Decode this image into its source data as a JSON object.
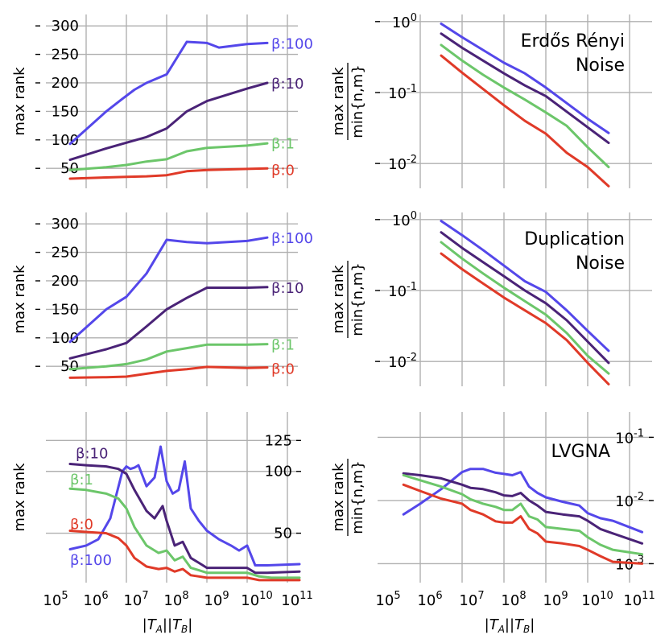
{
  "colors": {
    "beta0": "#e03a28",
    "beta1": "#6cc66a",
    "beta10": "#4a2377",
    "beta100": "#5447ea",
    "grid": "#b0b0b0"
  },
  "chart_data": [
    {
      "id": "p00",
      "type": "line",
      "xscale": "log",
      "yscale": "linear",
      "xlim": [
        5.5,
        11.5
      ],
      "ylim": [
        15,
        320
      ],
      "yticks": [
        50,
        100,
        150,
        200,
        250,
        300
      ],
      "yticklabels": [
        "50",
        "100",
        "150",
        "200",
        "250",
        "300"
      ],
      "ytick_side": "left",
      "ylabel": "max rank",
      "series": [
        {
          "name": "β:100",
          "color": "#5447ea",
          "x": [
            5.6,
            6.5,
            6.9,
            7.2,
            7.5,
            8.0,
            8.5,
            9.0,
            9.3,
            10.0,
            10.5
          ],
          "y": [
            93,
            150,
            172,
            188,
            200,
            215,
            272,
            270,
            262,
            268,
            270
          ]
        },
        {
          "name": "β:10",
          "color": "#4a2377",
          "x": [
            5.6,
            6.5,
            7.0,
            7.5,
            8.0,
            8.5,
            9.0,
            10.0,
            10.5
          ],
          "y": [
            65,
            85,
            95,
            105,
            120,
            150,
            168,
            190,
            200
          ]
        },
        {
          "name": "β:1",
          "color": "#6cc66a",
          "x": [
            5.6,
            6.5,
            7.0,
            7.5,
            8.0,
            8.5,
            9.0,
            10.0,
            10.5
          ],
          "y": [
            47,
            52,
            56,
            62,
            66,
            80,
            86,
            90,
            94
          ]
        },
        {
          "name": "β:0",
          "color": "#e03a28",
          "x": [
            5.6,
            6.5,
            7.0,
            7.5,
            8.0,
            8.5,
            9.0,
            10.0,
            10.5
          ],
          "y": [
            32,
            34,
            35,
            36,
            38,
            45,
            47,
            49,
            50
          ]
        }
      ],
      "annotations": [
        {
          "text": "β:100",
          "color": "#5447ea",
          "x": 10.6,
          "y": 270
        },
        {
          "text": "β:10",
          "color": "#4a2377",
          "x": 10.6,
          "y": 200
        },
        {
          "text": "β:1",
          "color": "#6cc66a",
          "x": 10.6,
          "y": 95
        },
        {
          "text": "β:0",
          "color": "#e03a28",
          "x": 10.6,
          "y": 48
        }
      ]
    },
    {
      "id": "p01",
      "type": "line",
      "xscale": "log",
      "yscale": "log",
      "xlim": [
        5.5,
        11.5
      ],
      "ylim": [
        -2.35,
        0.1
      ],
      "yticks": [
        -2,
        -1,
        0
      ],
      "ytick_side": "left",
      "ylabel_top": "max rank",
      "ylabel_bottom": "min{n,m}",
      "title": [
        "Erdős Rényi",
        "Noise"
      ],
      "series": [
        {
          "name": "β:100",
          "color": "#5447ea",
          "x": [
            6.5,
            7.0,
            7.5,
            8.0,
            8.5,
            9.0,
            9.5,
            10.0,
            10.5
          ],
          "y": [
            -0.03,
            -0.22,
            -0.4,
            -0.58,
            -0.73,
            -0.93,
            -1.15,
            -1.37,
            -1.57
          ]
        },
        {
          "name": "β:10",
          "color": "#4a2377",
          "x": [
            6.5,
            7.0,
            7.5,
            8.0,
            8.5,
            9.0,
            9.5,
            10.0,
            10.5
          ],
          "y": [
            -0.17,
            -0.37,
            -0.55,
            -0.73,
            -0.9,
            -1.05,
            -1.27,
            -1.49,
            -1.71
          ]
        },
        {
          "name": "β:1",
          "color": "#6cc66a",
          "x": [
            6.5,
            7.0,
            7.5,
            8.0,
            8.5,
            9.0,
            9.5,
            10.0,
            10.5
          ],
          "y": [
            -0.33,
            -0.55,
            -0.75,
            -0.93,
            -1.1,
            -1.28,
            -1.47,
            -1.77,
            -2.05
          ]
        },
        {
          "name": "β:0",
          "color": "#e03a28",
          "x": [
            6.5,
            7.0,
            7.5,
            8.0,
            8.5,
            9.0,
            9.5,
            10.0,
            10.5
          ],
          "y": [
            -0.48,
            -0.72,
            -0.95,
            -1.18,
            -1.4,
            -1.58,
            -1.85,
            -2.05,
            -2.32
          ]
        }
      ]
    },
    {
      "id": "p10",
      "type": "line",
      "xscale": "log",
      "yscale": "linear",
      "xlim": [
        5.5,
        11.5
      ],
      "ylim": [
        15,
        320
      ],
      "yticks": [
        50,
        100,
        150,
        200,
        250,
        300
      ],
      "yticklabels": [
        "50",
        "100",
        "150",
        "200",
        "250",
        "300"
      ],
      "ytick_side": "left",
      "ylabel": "max rank",
      "series": [
        {
          "name": "β:100",
          "color": "#5447ea",
          "x": [
            5.6,
            6.5,
            7.0,
            7.5,
            8.0,
            8.5,
            9.0,
            10.0,
            10.5
          ],
          "y": [
            93,
            150,
            172,
            213,
            272,
            268,
            266,
            270,
            276
          ]
        },
        {
          "name": "β:10",
          "color": "#4a2377",
          "x": [
            5.6,
            6.5,
            7.0,
            7.5,
            8.0,
            8.5,
            9.0,
            10.0,
            10.5
          ],
          "y": [
            64,
            80,
            91,
            120,
            150,
            170,
            188,
            188,
            189
          ]
        },
        {
          "name": "β:1",
          "color": "#6cc66a",
          "x": [
            5.6,
            6.5,
            7.0,
            7.5,
            8.0,
            8.5,
            9.0,
            10.0,
            10.5
          ],
          "y": [
            45,
            50,
            54,
            62,
            76,
            82,
            88,
            88,
            89
          ]
        },
        {
          "name": "β:0",
          "color": "#e03a28",
          "x": [
            5.6,
            6.5,
            7.0,
            7.5,
            8.0,
            8.5,
            9.0,
            10.0,
            10.5
          ],
          "y": [
            30,
            31,
            32,
            37,
            42,
            45,
            49,
            47,
            48
          ]
        }
      ],
      "annotations": [
        {
          "text": "β:100",
          "color": "#5447ea",
          "x": 10.6,
          "y": 276
        },
        {
          "text": "β:10",
          "color": "#4a2377",
          "x": 10.6,
          "y": 189
        },
        {
          "text": "β:1",
          "color": "#6cc66a",
          "x": 10.6,
          "y": 89
        },
        {
          "text": "β:0",
          "color": "#e03a28",
          "x": 10.6,
          "y": 47
        }
      ]
    },
    {
      "id": "p11",
      "type": "line",
      "xscale": "log",
      "yscale": "log",
      "xlim": [
        5.5,
        11.5
      ],
      "ylim": [
        -2.35,
        0.1
      ],
      "yticks": [
        -2,
        -1,
        0
      ],
      "ytick_side": "left",
      "ylabel_top": "max rank",
      "ylabel_bottom": "min{n,m}",
      "title": [
        "Duplication",
        "Noise"
      ],
      "series": [
        {
          "name": "β:100",
          "color": "#5447ea",
          "x": [
            6.5,
            7.0,
            7.5,
            8.0,
            8.5,
            9.0,
            9.5,
            10.0,
            10.5
          ],
          "y": [
            -0.02,
            -0.22,
            -0.43,
            -0.65,
            -0.87,
            -1.02,
            -1.28,
            -1.57,
            -1.85
          ]
        },
        {
          "name": "β:10",
          "color": "#4a2377",
          "x": [
            6.5,
            7.0,
            7.5,
            8.0,
            8.5,
            9.0,
            9.5,
            10.0,
            10.5
          ],
          "y": [
            -0.18,
            -0.4,
            -0.6,
            -0.8,
            -1.0,
            -1.18,
            -1.42,
            -1.72,
            -2.02
          ]
        },
        {
          "name": "β:1",
          "color": "#6cc66a",
          "x": [
            6.5,
            7.0,
            7.5,
            8.0,
            8.5,
            9.0,
            9.5,
            10.0,
            10.5
          ],
          "y": [
            -0.32,
            -0.55,
            -0.76,
            -0.96,
            -1.15,
            -1.34,
            -1.6,
            -1.92,
            -2.17
          ]
        },
        {
          "name": "β:0",
          "color": "#e03a28",
          "x": [
            6.5,
            7.0,
            7.5,
            8.0,
            8.5,
            9.0,
            9.5,
            10.0,
            10.5
          ],
          "y": [
            -0.48,
            -0.7,
            -0.9,
            -1.1,
            -1.28,
            -1.46,
            -1.7,
            -2.02,
            -2.32
          ]
        }
      ]
    },
    {
      "id": "p20",
      "type": "line",
      "xscale": "log",
      "yscale": "linear",
      "xlim": [
        5.5,
        11.5
      ],
      "ylim": [
        10,
        148
      ],
      "yticks": [
        50,
        100,
        125
      ],
      "yticklabels": [
        "50",
        "100",
        "125"
      ],
      "ytick_side": "right",
      "ylabel": "max rank",
      "xticks": [
        5,
        6,
        7,
        8,
        9,
        10,
        11
      ],
      "xticklabels": [
        "10^5",
        "10^6",
        "10^7",
        "10^8",
        "10^9",
        "10^10",
        "10^11"
      ],
      "xlabel": "|T_A||T_B|",
      "series": [
        {
          "name": "β:100",
          "color": "#5447ea",
          "x": [
            5.6,
            6.0,
            6.3,
            6.6,
            6.9,
            7.0,
            7.1,
            7.2,
            7.3,
            7.5,
            7.7,
            7.85,
            8.0,
            8.15,
            8.3,
            8.45,
            8.6,
            8.8,
            9.0,
            9.3,
            9.6,
            9.8,
            10.0,
            10.2,
            10.5,
            11.3
          ],
          "y": [
            37,
            40,
            45,
            62,
            100,
            104,
            102,
            103,
            105,
            88,
            95,
            120,
            92,
            82,
            85,
            108,
            70,
            60,
            52,
            45,
            40,
            36,
            40,
            24,
            24,
            25
          ]
        },
        {
          "name": "β:10",
          "color": "#4a2377",
          "x": [
            5.6,
            6.0,
            6.5,
            6.8,
            7.0,
            7.2,
            7.5,
            7.7,
            7.9,
            8.0,
            8.2,
            8.4,
            8.6,
            8.8,
            9.0,
            9.4,
            9.8,
            10.0,
            10.2,
            10.5,
            11.3
          ],
          "y": [
            106,
            105,
            104,
            102,
            98,
            85,
            68,
            62,
            72,
            60,
            40,
            43,
            30,
            26,
            22,
            22,
            22,
            22,
            18,
            18,
            19
          ]
        },
        {
          "name": "β:1",
          "color": "#6cc66a",
          "x": [
            5.6,
            6.0,
            6.5,
            6.8,
            7.0,
            7.2,
            7.5,
            7.8,
            8.0,
            8.2,
            8.4,
            8.6,
            8.8,
            9.0,
            9.4,
            9.8,
            10.0,
            10.3,
            10.6,
            11.3
          ],
          "y": [
            86,
            85,
            82,
            78,
            70,
            55,
            40,
            34,
            36,
            28,
            31,
            22,
            20,
            18,
            18,
            18,
            18,
            15,
            14,
            14
          ]
        },
        {
          "name": "β:0",
          "color": "#e03a28",
          "x": [
            5.6,
            6.0,
            6.5,
            6.8,
            7.0,
            7.2,
            7.5,
            7.8,
            8.0,
            8.2,
            8.4,
            8.6,
            8.8,
            9.0,
            9.4,
            9.8,
            10.0,
            10.3,
            10.6,
            11.3
          ],
          "y": [
            52,
            51,
            50,
            46,
            40,
            30,
            23,
            21,
            22,
            19,
            21,
            16,
            15,
            14,
            14,
            14,
            14,
            12,
            12,
            12
          ]
        }
      ],
      "annotations": [
        {
          "text": "β:10",
          "color": "#4a2377",
          "x": 5.74,
          "y": 115
        },
        {
          "text": "β:1",
          "color": "#6cc66a",
          "x": 5.6,
          "y": 94
        },
        {
          "text": "β:0",
          "color": "#e03a28",
          "x": 5.6,
          "y": 58
        },
        {
          "text": "β:100",
          "color": "#5447ea",
          "x": 5.6,
          "y": 29
        }
      ]
    },
    {
      "id": "p21",
      "type": "line",
      "xscale": "log",
      "yscale": "log",
      "xlim": [
        5.5,
        11.5
      ],
      "ylim": [
        -3.3,
        -0.6
      ],
      "yticks": [
        -3,
        -2,
        -1
      ],
      "ytick_side": "right",
      "ylabel_top": "max rank",
      "ylabel_bottom": "min{n,m}",
      "title": [
        "LVGNA"
      ],
      "xticks": [
        5,
        6,
        7,
        8,
        9,
        10,
        11
      ],
      "xticklabels": [
        "10^5",
        "10^6",
        "10^7",
        "10^8",
        "10^9",
        "10^10",
        "10^11"
      ],
      "xlabel": "|T_A||T_B|",
      "series": [
        {
          "name": "β:100",
          "color": "#5447ea",
          "x": [
            5.6,
            6.0,
            6.5,
            7.0,
            7.2,
            7.5,
            7.8,
            8.0,
            8.2,
            8.4,
            8.6,
            8.8,
            9.0,
            9.4,
            9.8,
            10.0,
            10.3,
            10.6,
            11.3
          ],
          "y": [
            -2.22,
            -2.05,
            -1.82,
            -1.55,
            -1.5,
            -1.5,
            -1.56,
            -1.58,
            -1.6,
            -1.55,
            -1.78,
            -1.88,
            -1.95,
            -2.02,
            -2.08,
            -2.2,
            -2.28,
            -2.32,
            -2.5
          ]
        },
        {
          "name": "β:10",
          "color": "#4a2377",
          "x": [
            5.6,
            6.0,
            6.5,
            7.0,
            7.2,
            7.5,
            7.8,
            8.0,
            8.2,
            8.4,
            8.6,
            8.8,
            9.0,
            9.4,
            9.8,
            10.0,
            10.3,
            10.6,
            11.3
          ],
          "y": [
            -1.57,
            -1.6,
            -1.65,
            -1.75,
            -1.8,
            -1.82,
            -1.87,
            -1.92,
            -1.93,
            -1.88,
            -2.0,
            -2.08,
            -2.18,
            -2.22,
            -2.25,
            -2.32,
            -2.45,
            -2.52,
            -2.68
          ]
        },
        {
          "name": "β:1",
          "color": "#6cc66a",
          "x": [
            5.6,
            6.0,
            6.5,
            7.0,
            7.2,
            7.5,
            7.8,
            8.0,
            8.2,
            8.4,
            8.6,
            8.8,
            9.0,
            9.4,
            9.8,
            10.0,
            10.3,
            10.6,
            11.3
          ],
          "y": [
            -1.6,
            -1.68,
            -1.78,
            -1.9,
            -1.98,
            -2.05,
            -2.1,
            -2.15,
            -2.15,
            -2.05,
            -2.25,
            -2.3,
            -2.42,
            -2.45,
            -2.48,
            -2.58,
            -2.7,
            -2.78,
            -2.85
          ]
        },
        {
          "name": "β:0",
          "color": "#e03a28",
          "x": [
            5.6,
            6.0,
            6.5,
            7.0,
            7.2,
            7.5,
            7.8,
            8.0,
            8.2,
            8.4,
            8.6,
            8.8,
            9.0,
            9.4,
            9.8,
            10.0,
            10.3,
            10.6,
            11.3
          ],
          "y": [
            -1.75,
            -1.85,
            -1.97,
            -2.05,
            -2.15,
            -2.22,
            -2.33,
            -2.35,
            -2.35,
            -2.25,
            -2.45,
            -2.52,
            -2.65,
            -2.68,
            -2.72,
            -2.78,
            -2.88,
            -2.97,
            -3.0
          ]
        }
      ]
    }
  ]
}
